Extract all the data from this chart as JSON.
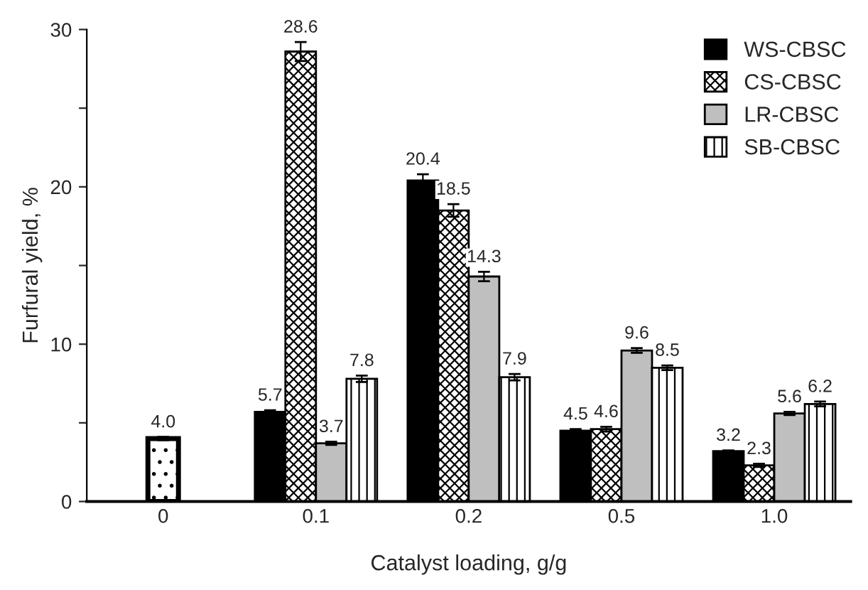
{
  "chart_data": {
    "type": "bar",
    "xlabel": "Catalyst loading, g/g",
    "ylabel": "Furfural yield, %",
    "categories": [
      "0",
      "0.1",
      "0.2",
      "0.5",
      "1.0"
    ],
    "series": [
      {
        "color": "#000000",
        "values": [
          4.0,
          null,
          null,
          null,
          null
        ],
        "value_labels": [
          "4.0",
          null,
          null,
          null,
          null
        ],
        "errors": [
          0.1,
          null,
          null,
          null,
          null
        ]
      },
      {
        "name": "WS-CBSC",
        "color": "#000000",
        "values": [
          null,
          5.7,
          20.4,
          4.5,
          3.2
        ],
        "errors": [
          null,
          0.1,
          0.4,
          0.1,
          0.05
        ]
      },
      {
        "name": "CS-CBSC",
        "color": "#000000",
        "values": [
          null,
          28.6,
          18.5,
          4.6,
          2.3
        ],
        "errors": [
          null,
          0.6,
          0.4,
          0.15,
          0.1
        ]
      },
      {
        "name": "LR-CBSC",
        "color": "#bfbfbf",
        "values": [
          null,
          3.7,
          14.3,
          9.6,
          5.6
        ],
        "errors": [
          null,
          0.1,
          0.3,
          0.15,
          0.1
        ]
      },
      {
        "name": "SB-CBSC",
        "color": "#000000",
        "values": [
          null,
          7.8,
          7.9,
          8.5,
          6.2
        ],
        "errors": [
          null,
          0.2,
          0.2,
          0.15,
          0.15
        ]
      }
    ],
    "ylim": [
      0,
      30
    ],
    "yticks": [
      0,
      {
        "value": 5,
        "label": null
      },
      10,
      {
        "value": 15,
        "label": null
      },
      20,
      {
        "value": 25,
        "label": null
      },
      30
    ],
    "data_labels": true,
    "legend": "top right",
    "grid": false
  }
}
